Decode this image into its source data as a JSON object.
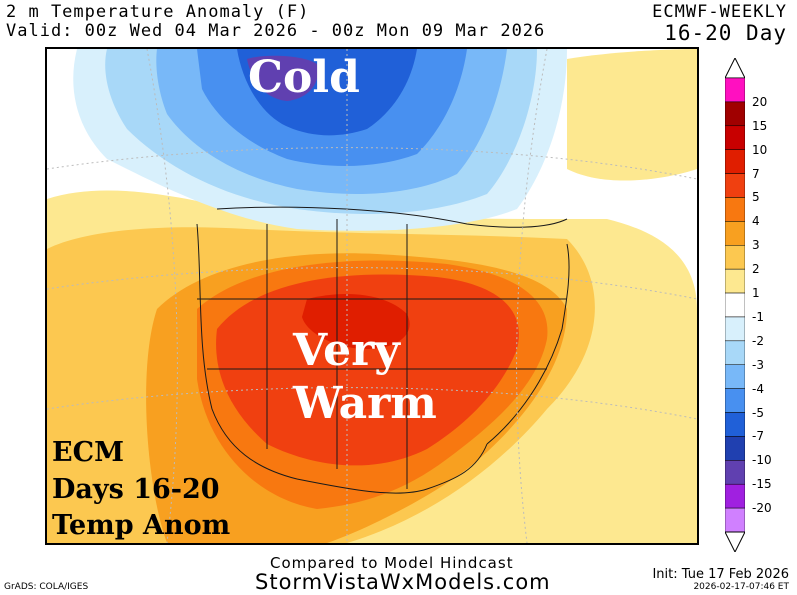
{
  "header": {
    "title": "2 m Temperature Anomaly (F)",
    "valid": "Valid: 00z Wed 04 Mar 2026 - 00z Mon 09 Mar 2026",
    "model": "ECMWF-WEEKLY",
    "period": "16-20 Day"
  },
  "annotations": {
    "cold": "Cold",
    "very": "Very",
    "warm": "Warm",
    "ecm_line1": "ECM",
    "ecm_line2": "Days 16-20",
    "ecm_line3": "Temp Anom"
  },
  "legend": {
    "labels": [
      "20",
      "15",
      "10",
      "7",
      "5",
      "4",
      "3",
      "2",
      "1",
      "-1",
      "-2",
      "-3",
      "-4",
      "-5",
      "-7",
      "-10",
      "-15",
      "-20"
    ],
    "colors": [
      "#ff10c0",
      "#a00000",
      "#c80000",
      "#e01e00",
      "#f04010",
      "#f87810",
      "#f8a020",
      "#fcc850",
      "#fde890",
      "#ffffff",
      "#d8f0fc",
      "#a8d8f8",
      "#78b8f8",
      "#4890f0",
      "#2060d8",
      "#2040b0",
      "#6040b0",
      "#a020e0",
      "#d080ff"
    ]
  },
  "footer": {
    "compared": "Compared to Model Hindcast",
    "site": "StormVistaWxModels.com",
    "grads": "GrADS: COLA/IGES",
    "init": "Init: Tue 17 Feb 2026",
    "timestamp": "2026-02-17-07:46 ET"
  }
}
